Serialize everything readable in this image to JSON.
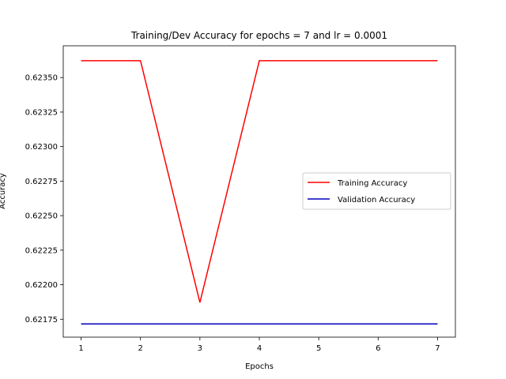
{
  "chart_data": {
    "type": "line",
    "title": "Training/Dev Accuracy for epochs = 7 and lr = 0.0001",
    "xlabel": "Epochs",
    "ylabel": "Accuracy",
    "x": [
      1,
      2,
      3,
      4,
      5,
      6,
      7
    ],
    "xticks": [
      1,
      2,
      3,
      4,
      5,
      6,
      7
    ],
    "yticks": [
      0.62175,
      0.622,
      0.62225,
      0.6225,
      0.62275,
      0.623,
      0.62325,
      0.6235
    ],
    "ytick_labels": [
      "0.62175",
      "0.62200",
      "0.62225",
      "0.62250",
      "0.62275",
      "0.62300",
      "0.62325",
      "0.62350"
    ],
    "xlim": [
      0.7,
      7.3
    ],
    "ylim": [
      0.62162,
      0.62373
    ],
    "grid": false,
    "legend": "center-right",
    "series": [
      {
        "name": "Training Accuracy",
        "color": "#ff0000",
        "values": [
          0.623622,
          0.623622,
          0.621871,
          0.623622,
          0.623622,
          0.623622,
          0.623622
        ]
      },
      {
        "name": "Validation Accuracy",
        "color": "#0000bf",
        "values": [
          0.621716,
          0.621716,
          0.621716,
          0.621716,
          0.621716,
          0.621716,
          0.621716
        ]
      }
    ]
  }
}
